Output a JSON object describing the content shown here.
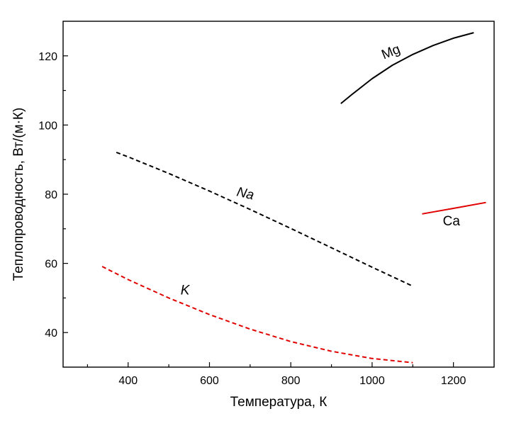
{
  "chart_data": {
    "type": "line",
    "title": "",
    "xlabel": "Температура, К",
    "ylabel": "Теплопроводность, Вт/(м·К)",
    "xlim": [
      240,
      1300
    ],
    "ylim": [
      30,
      130
    ],
    "x_ticks": [
      {
        "value": 400,
        "label": "400"
      },
      {
        "value": 600,
        "label": "600"
      },
      {
        "value": 800,
        "label": "800"
      },
      {
        "value": 1000,
        "label": "1000"
      },
      {
        "value": 1200,
        "label": "1200"
      }
    ],
    "x_minor_ticks": [
      300,
      500,
      700,
      900,
      1100
    ],
    "y_ticks": [
      {
        "value": 40,
        "label": "40"
      },
      {
        "value": 60,
        "label": "60"
      },
      {
        "value": 80,
        "label": "80"
      },
      {
        "value": 100,
        "label": "100"
      },
      {
        "value": 120,
        "label": "120"
      }
    ],
    "y_minor_ticks": [
      50,
      70,
      90,
      110
    ],
    "grid": false,
    "series": [
      {
        "name": "Mg",
        "label": "Mg",
        "label_italic": false,
        "color": "#000000",
        "dashed": false,
        "x": [
          923,
          950,
          1000,
          1050,
          1100,
          1150,
          1200,
          1250
        ],
        "y": [
          106.2,
          108.8,
          113.4,
          117.3,
          120.4,
          123.0,
          125.1,
          126.7
        ],
        "label_pos": {
          "x": 1050,
          "y": 120
        }
      },
      {
        "name": "Ca",
        "label": "Ca",
        "label_italic": false,
        "color": "#e00000",
        "dashed": false,
        "x": [
          1123,
          1200,
          1280
        ],
        "y": [
          74.3,
          75.9,
          77.6
        ],
        "label_pos": {
          "x": 1195,
          "y": 71
        }
      },
      {
        "name": "Na",
        "label": "Na",
        "label_italic": true,
        "color": "#000000",
        "dashed": true,
        "x": [
          371,
          400,
          500,
          600,
          700,
          800,
          900,
          1000,
          1100
        ],
        "y": [
          92.1,
          90.8,
          86.0,
          80.9,
          75.6,
          70.1,
          64.5,
          58.9,
          53.4
        ],
        "label_pos": {
          "x": 686,
          "y": 79
        }
      },
      {
        "name": "K",
        "label": "K",
        "label_italic": true,
        "color": "#e00000",
        "dashed": true,
        "x": [
          336,
          400,
          500,
          600,
          700,
          800,
          900,
          1000,
          1100
        ],
        "y": [
          59.1,
          55.3,
          50.0,
          45.2,
          41.0,
          37.4,
          34.6,
          32.5,
          31.3
        ],
        "label_pos": {
          "x": 540,
          "y": 51
        }
      }
    ]
  }
}
